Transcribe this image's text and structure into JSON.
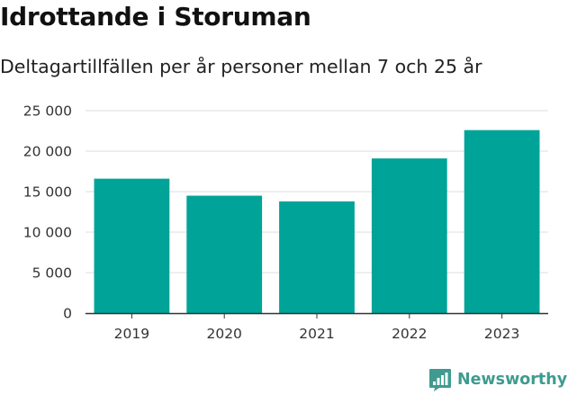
{
  "chart_data": {
    "type": "bar",
    "title": "Idrottande i Storuman",
    "subtitle": "Deltagartillfällen per år personer mellan 7 och 25 år",
    "categories": [
      "2019",
      "2020",
      "2021",
      "2022",
      "2023"
    ],
    "values": [
      16600,
      14500,
      13800,
      19100,
      22600
    ],
    "ylim": [
      0,
      25000
    ],
    "yticks": [
      0,
      5000,
      10000,
      15000,
      20000,
      25000
    ],
    "ytick_labels": [
      "0",
      "5 000",
      "10 000",
      "15 000",
      "20 000",
      "25 000"
    ],
    "grid": true,
    "legend": "none",
    "bar_color": "#00a398"
  },
  "logo": {
    "name": "Newsworthy",
    "icon": "bar-chart-badge-icon",
    "color": "#3f9b8f"
  }
}
